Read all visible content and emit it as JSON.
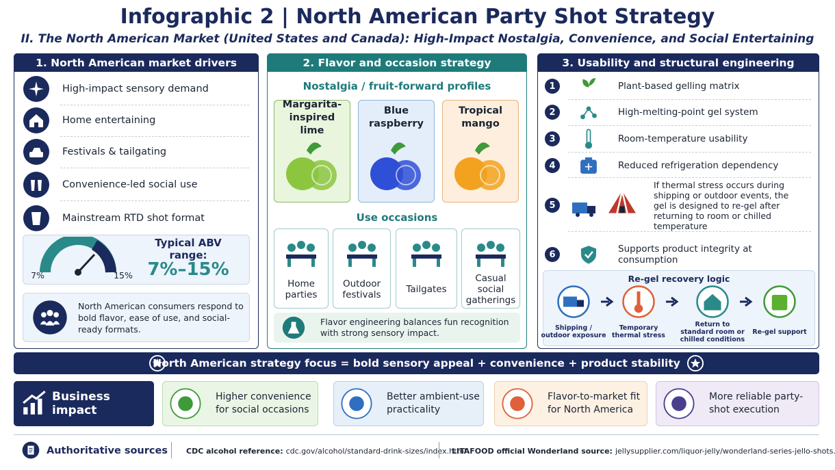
{
  "header": {
    "title": "Infographic 2 | North American Party Shot Strategy",
    "subtitle": "II. The North American Market (United States and Canada): High-Impact Nostalgia, Convenience, and Social Entertaining"
  },
  "market_drivers": {
    "title": "1. North American market drivers",
    "items": [
      "High-impact sensory demand",
      "Home entertaining",
      "Festivals & tailgating",
      "Convenience-led social use",
      "Mainstream RTD shot format"
    ],
    "abv": {
      "min_label": "7%",
      "max_label": "15%",
      "label": "Typical ABV range:",
      "value": "7%–15%"
    },
    "note": "North American consumers respond to bold flavor, ease of use, and social-ready formats."
  },
  "flavor_strategy": {
    "title": "2. Flavor and occasion strategy",
    "profiles_heading": "Nostalgia / fruit-forward profiles",
    "profiles": [
      "Margarita-inspired lime",
      "Blue raspberry",
      "Tropical mango"
    ],
    "occasions_heading": "Use occasions",
    "occasions": [
      "Home parties",
      "Outdoor festivals",
      "Tailgates",
      "Casual social gatherings"
    ],
    "note": "Flavor engineering balances fun recognition with strong sensory impact."
  },
  "usability": {
    "title": "3. Usability and structural engineering",
    "items": [
      {
        "number": "1",
        "text": "Plant-based gelling matrix"
      },
      {
        "number": "2",
        "text": "High-melting-point gel system"
      },
      {
        "number": "3",
        "text": "Room-temperature usability"
      },
      {
        "number": "4",
        "text": "Reduced refrigeration dependency"
      },
      {
        "number": "5",
        "text": "If thermal stress occurs during shipping or outdoor events, the gel is designed to re-gel after returning to room or chilled temperature"
      },
      {
        "number": "6",
        "text": "Supports product integrity at consumption"
      }
    ],
    "regel": {
      "title": "Re-gel recovery logic",
      "steps": [
        "Shipping / outdoor exposure",
        "Temporary thermal stress",
        "Return to standard room or chilled conditions",
        "Re-gel support"
      ]
    }
  },
  "focus": "North American strategy focus = bold sensory appeal + convenience + product stability",
  "impact": {
    "label": "Business impact",
    "items": [
      "Higher convenience for social occasions",
      "Better ambient-use practicality",
      "Flavor-to-market fit for North America",
      "More reliable party-shot execution"
    ]
  },
  "sources": {
    "label": "Authoritative sources",
    "items": [
      {
        "label": "CDC alcohol reference:",
        "url": "cdc.gov/alcohol/standard-drink-sizes/index.html"
      },
      {
        "label": "LITAFOOD official Wonderland source:",
        "url": "jellysupplier.com/liquor-jelly/wonderland-series-jello-shots.html"
      }
    ]
  }
}
